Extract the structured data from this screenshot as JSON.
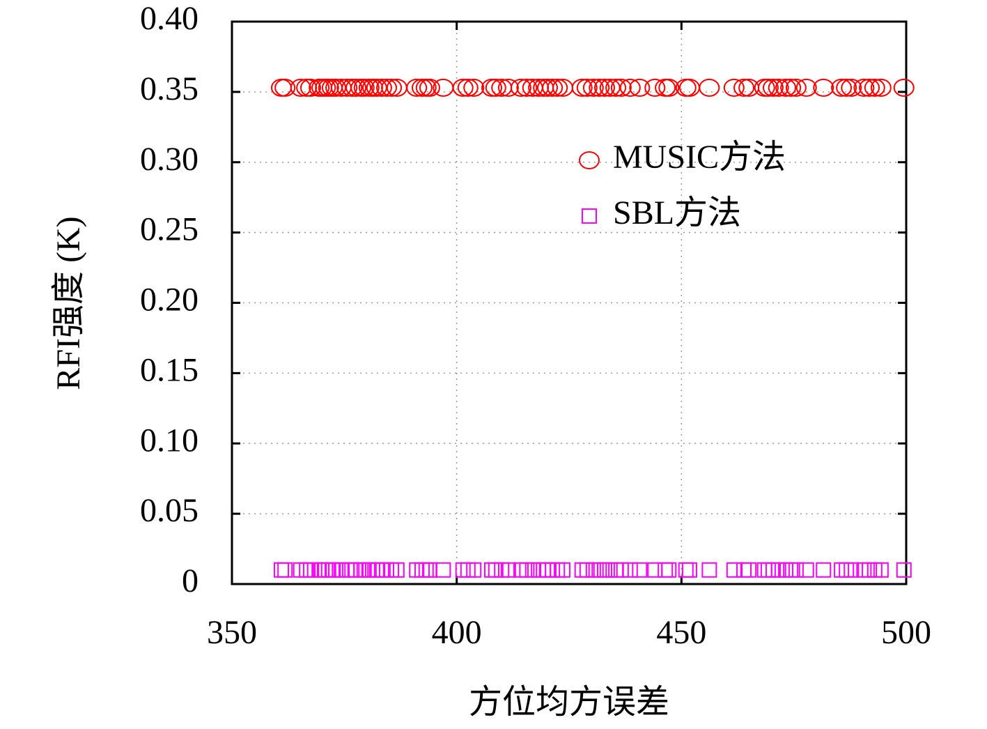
{
  "chart_data": {
    "type": "scatter",
    "xlabel": "方位均方误差",
    "ylabel": "RFI强度 (K)",
    "xlim": [
      350,
      500
    ],
    "xticks": [
      350,
      400,
      450,
      500
    ],
    "ylim": [
      0,
      0.4
    ],
    "yticks": [
      0,
      0.05,
      {
        "value": 0.1,
        "label": "0.10"
      },
      0.15,
      {
        "value": 0.2,
        "label": "0.20"
      },
      0.25,
      {
        "value": 0.3,
        "label": "0.30"
      },
      0.35,
      {
        "value": 0.4,
        "label": "0.40"
      }
    ],
    "grid": true,
    "legend": "upper right",
    "series": [
      {
        "name": "MUSIC方法",
        "color": "#ff0000",
        "marker": "circle",
        "x": [
          361.0,
          361.8,
          365.3,
          366.6,
          367.5,
          369.4,
          370.0,
          370.8,
          371.5,
          372.3,
          373.1,
          374.3,
          375.6,
          376.7,
          377.6,
          378.7,
          379.4,
          380.5,
          381.3,
          382.2,
          383.3,
          384.4,
          385.5,
          386.7,
          391.1,
          392.3,
          393.2,
          394.0,
          397.0,
          401.4,
          402.5,
          403.8,
          407.8,
          408.7,
          410.0,
          411.5,
          414.3,
          415.6,
          416.9,
          418.2,
          419.3,
          420.2,
          421.3,
          422.4,
          423.6,
          427.9,
          429.0,
          430.4,
          431.7,
          432.9,
          434.1,
          435.4,
          436.6,
          438.6,
          440.7,
          444.1,
          446.4,
          447.2,
          451.0,
          451.8,
          456.2,
          461.7,
          463.9,
          465.0,
          468.5,
          469.3,
          470.4,
          471.6,
          473.2,
          474.3,
          475.5,
          477.8,
          481.6,
          485.6,
          486.7,
          487.8,
          490.6,
          491.8,
          493.0,
          494.4,
          499.5
        ],
        "values": [
          0.353,
          0.353,
          0.353,
          0.353,
          0.353,
          0.353,
          0.353,
          0.353,
          0.353,
          0.353,
          0.353,
          0.353,
          0.353,
          0.353,
          0.353,
          0.353,
          0.353,
          0.353,
          0.353,
          0.353,
          0.353,
          0.353,
          0.353,
          0.353,
          0.353,
          0.353,
          0.353,
          0.353,
          0.353,
          0.353,
          0.353,
          0.353,
          0.353,
          0.353,
          0.353,
          0.353,
          0.353,
          0.353,
          0.353,
          0.353,
          0.353,
          0.353,
          0.353,
          0.353,
          0.353,
          0.353,
          0.353,
          0.353,
          0.353,
          0.353,
          0.353,
          0.353,
          0.353,
          0.353,
          0.353,
          0.353,
          0.353,
          0.353,
          0.353,
          0.353,
          0.353,
          0.353,
          0.353,
          0.353,
          0.353,
          0.353,
          0.353,
          0.353,
          0.353,
          0.353,
          0.353,
          0.353,
          0.353,
          0.353,
          0.353,
          0.353,
          0.353,
          0.353,
          0.353,
          0.353,
          0.353
        ]
      },
      {
        "name": "SBL方法",
        "color": "#ff00ff",
        "marker": "square",
        "x": [
          361.0,
          361.8,
          365.3,
          366.6,
          367.5,
          369.4,
          370.0,
          370.8,
          371.5,
          372.3,
          373.1,
          374.3,
          375.6,
          376.7,
          377.6,
          378.7,
          379.4,
          380.5,
          381.3,
          382.2,
          383.3,
          384.4,
          385.5,
          386.7,
          391.1,
          392.3,
          393.2,
          394.0,
          397.0,
          401.4,
          402.5,
          403.8,
          407.8,
          408.7,
          410.0,
          411.5,
          414.3,
          415.6,
          416.9,
          418.2,
          419.3,
          420.2,
          421.3,
          422.4,
          423.6,
          427.9,
          429.0,
          430.4,
          431.7,
          432.9,
          434.1,
          435.4,
          436.6,
          438.6,
          440.7,
          444.1,
          446.4,
          447.2,
          451.0,
          451.8,
          456.2,
          461.7,
          463.9,
          465.0,
          468.5,
          469.3,
          470.4,
          471.6,
          473.2,
          474.3,
          475.5,
          477.8,
          481.6,
          485.6,
          486.7,
          487.8,
          490.6,
          491.8,
          493.0,
          494.4,
          499.5
        ],
        "values": [
          0.01,
          0.01,
          0.01,
          0.01,
          0.01,
          0.01,
          0.01,
          0.01,
          0.01,
          0.01,
          0.01,
          0.01,
          0.01,
          0.01,
          0.01,
          0.01,
          0.01,
          0.01,
          0.01,
          0.01,
          0.01,
          0.01,
          0.01,
          0.01,
          0.01,
          0.01,
          0.01,
          0.01,
          0.01,
          0.01,
          0.01,
          0.01,
          0.01,
          0.01,
          0.01,
          0.01,
          0.01,
          0.01,
          0.01,
          0.01,
          0.01,
          0.01,
          0.01,
          0.01,
          0.01,
          0.01,
          0.01,
          0.01,
          0.01,
          0.01,
          0.01,
          0.01,
          0.01,
          0.01,
          0.01,
          0.01,
          0.01,
          0.01,
          0.01,
          0.01,
          0.01,
          0.01,
          0.01,
          0.01,
          0.01,
          0.01,
          0.01,
          0.01,
          0.01,
          0.01,
          0.01,
          0.01,
          0.01,
          0.01,
          0.01,
          0.01,
          0.01,
          0.01,
          0.01,
          0.01,
          0.01
        ]
      }
    ]
  }
}
